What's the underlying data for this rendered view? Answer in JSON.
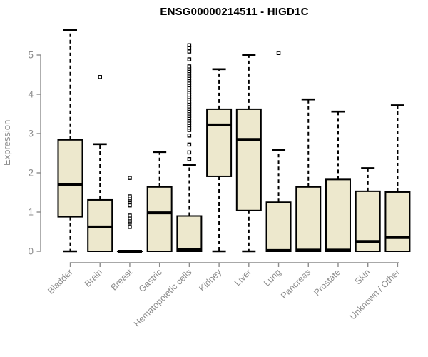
{
  "chart_data": {
    "type": "boxplot",
    "title": "ENSG00000214511 - HIGD1C",
    "xlabel": "",
    "ylabel": "Expression",
    "ylim": [
      0,
      5.65
    ],
    "yticks": [
      0,
      1,
      2,
      3,
      4,
      5
    ],
    "grid": false,
    "legend_position": "none",
    "categories": [
      "Bladder",
      "Brain",
      "Breast",
      "Gastric",
      "Hematopoietic cells",
      "Kidney",
      "Liver",
      "Lung",
      "Pancreas",
      "Prostate",
      "Skin",
      "Unknown / Other"
    ],
    "series": [
      {
        "name": "Bladder",
        "whisker_low": 0,
        "q1": 0.88,
        "median": 1.69,
        "q3": 2.84,
        "whisker_high": 5.64,
        "outliers": []
      },
      {
        "name": "Brain",
        "whisker_low": 0,
        "q1": 0,
        "median": 0.62,
        "q3": 1.31,
        "whisker_high": 2.73,
        "outliers": [
          4.44
        ]
      },
      {
        "name": "Breast",
        "whisker_low": 0,
        "q1": 0,
        "median": 0,
        "q3": 0,
        "whisker_high": 0,
        "outliers": [
          0.62,
          0.73,
          0.78,
          0.84,
          0.91,
          1.17,
          1.25,
          1.3,
          1.35,
          1.4,
          1.87
        ]
      },
      {
        "name": "Gastric",
        "whisker_low": 0,
        "q1": 0,
        "median": 0.98,
        "q3": 1.64,
        "whisker_high": 2.53,
        "outliers": []
      },
      {
        "name": "Hematopoietic cells",
        "whisker_low": 0,
        "q1": 0,
        "median": 0.04,
        "q3": 0.9,
        "whisker_high": 2.2,
        "outliers": [
          2.35,
          2.52,
          2.72,
          2.95,
          3.09,
          3.15,
          3.21,
          3.27,
          3.33,
          3.39,
          3.45,
          3.51,
          3.57,
          3.63,
          3.69,
          3.75,
          3.81,
          3.87,
          3.93,
          3.99,
          4.05,
          4.11,
          4.17,
          4.23,
          4.29,
          4.35,
          4.41,
          4.47,
          4.53,
          4.59,
          4.65,
          4.71,
          4.89,
          5.09,
          5.18,
          5.25
        ]
      },
      {
        "name": "Kidney",
        "whisker_low": 0,
        "q1": 1.91,
        "median": 3.22,
        "q3": 3.62,
        "whisker_high": 4.64,
        "outliers": []
      },
      {
        "name": "Liver",
        "whisker_low": 0,
        "q1": 1.04,
        "median": 2.85,
        "q3": 3.62,
        "whisker_high": 5.0,
        "outliers": []
      },
      {
        "name": "Lung",
        "whisker_low": 0,
        "q1": 0,
        "median": 0.02,
        "q3": 1.25,
        "whisker_high": 2.58,
        "outliers": [
          5.05
        ]
      },
      {
        "name": "Pancreas",
        "whisker_low": 0,
        "q1": 0,
        "median": 0.03,
        "q3": 1.64,
        "whisker_high": 3.87,
        "outliers": []
      },
      {
        "name": "Prostate",
        "whisker_low": 0,
        "q1": 0,
        "median": 0.03,
        "q3": 1.83,
        "whisker_high": 3.56,
        "outliers": []
      },
      {
        "name": "Skin",
        "whisker_low": 0,
        "q1": 0,
        "median": 0.25,
        "q3": 1.53,
        "whisker_high": 2.12,
        "outliers": []
      },
      {
        "name": "Unknown / Other",
        "whisker_low": 0,
        "q1": 0,
        "median": 0.35,
        "q3": 1.51,
        "whisker_high": 3.72,
        "outliers": []
      }
    ],
    "colors": {
      "box_fill": "#EDE8CD",
      "box_stroke": "#000000",
      "median_stroke": "#000000",
      "whisker_stroke": "#000000",
      "axis_color": "#8c8c8c",
      "tick_label_color": "#8c8c8c",
      "title_color": "#000000",
      "background": "#FFFFFF"
    }
  }
}
